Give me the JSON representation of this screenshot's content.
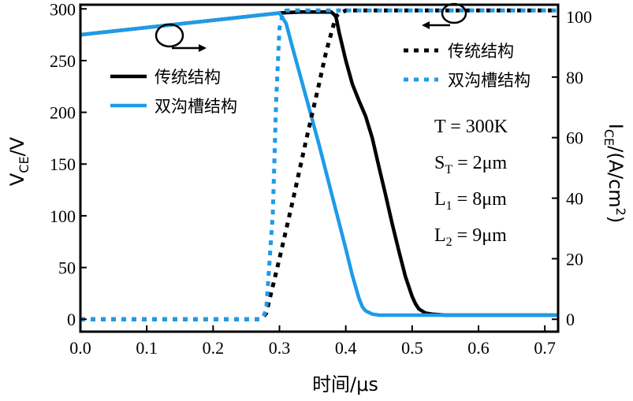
{
  "chart_data": {
    "type": "line",
    "xlabel": "时间/μs",
    "ylabel_left": {
      "main": "V",
      "sub": "CE",
      "suffix": "/V"
    },
    "ylabel_right": {
      "main": "I",
      "sub": "CE",
      "suffix": "/(A/cm",
      "sup": "2",
      "close": ")"
    },
    "xlim": [
      0.0,
      0.72
    ],
    "ylim_left": [
      -12,
      304
    ],
    "ylim_right": [
      -4.1,
      103.9
    ],
    "x_ticks": [
      "0.0",
      "0.1",
      "0.2",
      "0.3",
      "0.4",
      "0.5",
      "0.6",
      "0.7"
    ],
    "y_left_ticks": [
      "0",
      "50",
      "100",
      "150",
      "200",
      "250",
      "300"
    ],
    "y_right_ticks": [
      "0",
      "20",
      "40",
      "60",
      "80",
      "100"
    ],
    "series": [
      {
        "name": "传统结构",
        "axis": "left",
        "color": "#000000",
        "dash": "solid",
        "x": [
          0.0,
          0.3,
          0.33,
          0.378,
          0.385,
          0.39,
          0.4,
          0.41,
          0.42,
          0.43,
          0.44,
          0.45,
          0.46,
          0.47,
          0.48,
          0.49,
          0.5,
          0.505,
          0.51,
          0.52,
          0.53,
          0.55,
          0.6,
          0.65,
          0.72
        ],
        "y": [
          275,
          296,
          297,
          297,
          293,
          277,
          250,
          227,
          211,
          196,
          175,
          147,
          120,
          92,
          66,
          41,
          22,
          15,
          10,
          6,
          5,
          4,
          4,
          4,
          4
        ]
      },
      {
        "name": "双沟槽结构",
        "axis": "left",
        "color": "#1e9be9",
        "dash": "solid",
        "x": [
          0.0,
          0.3,
          0.31,
          0.32,
          0.34,
          0.36,
          0.38,
          0.4,
          0.41,
          0.42,
          0.425,
          0.43,
          0.44,
          0.45,
          0.46,
          0.5,
          0.6,
          0.72
        ],
        "y": [
          275,
          296,
          286,
          262,
          215,
          168,
          118,
          68,
          42,
          20,
          12,
          8,
          5,
          4,
          4,
          4,
          4,
          4
        ]
      },
      {
        "name": "传统结构",
        "axis": "right",
        "color": "#000000",
        "dash": "dotted",
        "x": [
          0.0,
          0.27,
          0.275,
          0.28,
          0.3,
          0.32,
          0.34,
          0.36,
          0.37,
          0.38,
          0.385,
          0.39,
          0.4,
          0.5,
          0.6,
          0.72
        ],
        "y": [
          0,
          0,
          0.6,
          2,
          20,
          39,
          59,
          78,
          88,
          96,
          100,
          101,
          102,
          102,
          102,
          102
        ]
      },
      {
        "name": "双沟槽结构",
        "axis": "right",
        "color": "#1e9be9",
        "dash": "dotted",
        "x": [
          0.0,
          0.27,
          0.275,
          0.28,
          0.29,
          0.295,
          0.3,
          0.305,
          0.31,
          0.32,
          0.4,
          0.5,
          0.6,
          0.72
        ],
        "y": [
          0,
          0,
          0.6,
          3,
          35,
          72,
          96,
          101,
          102,
          102,
          102,
          102,
          102,
          102
        ]
      }
    ],
    "legend_left": [
      {
        "label": "传统结构",
        "color": "#000000"
      },
      {
        "label": "双沟槽结构",
        "color": "#1e9be9"
      }
    ],
    "legend_right": [
      {
        "label": "传统结构",
        "color": "#000000"
      },
      {
        "label": "双沟槽结构",
        "color": "#1e9be9"
      }
    ],
    "params": [
      {
        "main": "T = 300K",
        "sub": "",
        "rest": ""
      },
      {
        "main": "S",
        "sub": "T",
        "rest": " = 2μm"
      },
      {
        "main": "L",
        "sub": "1",
        "rest": " = 8μm"
      },
      {
        "main": "L",
        "sub": "2",
        "rest": " = 9μm"
      }
    ],
    "grid": false
  }
}
